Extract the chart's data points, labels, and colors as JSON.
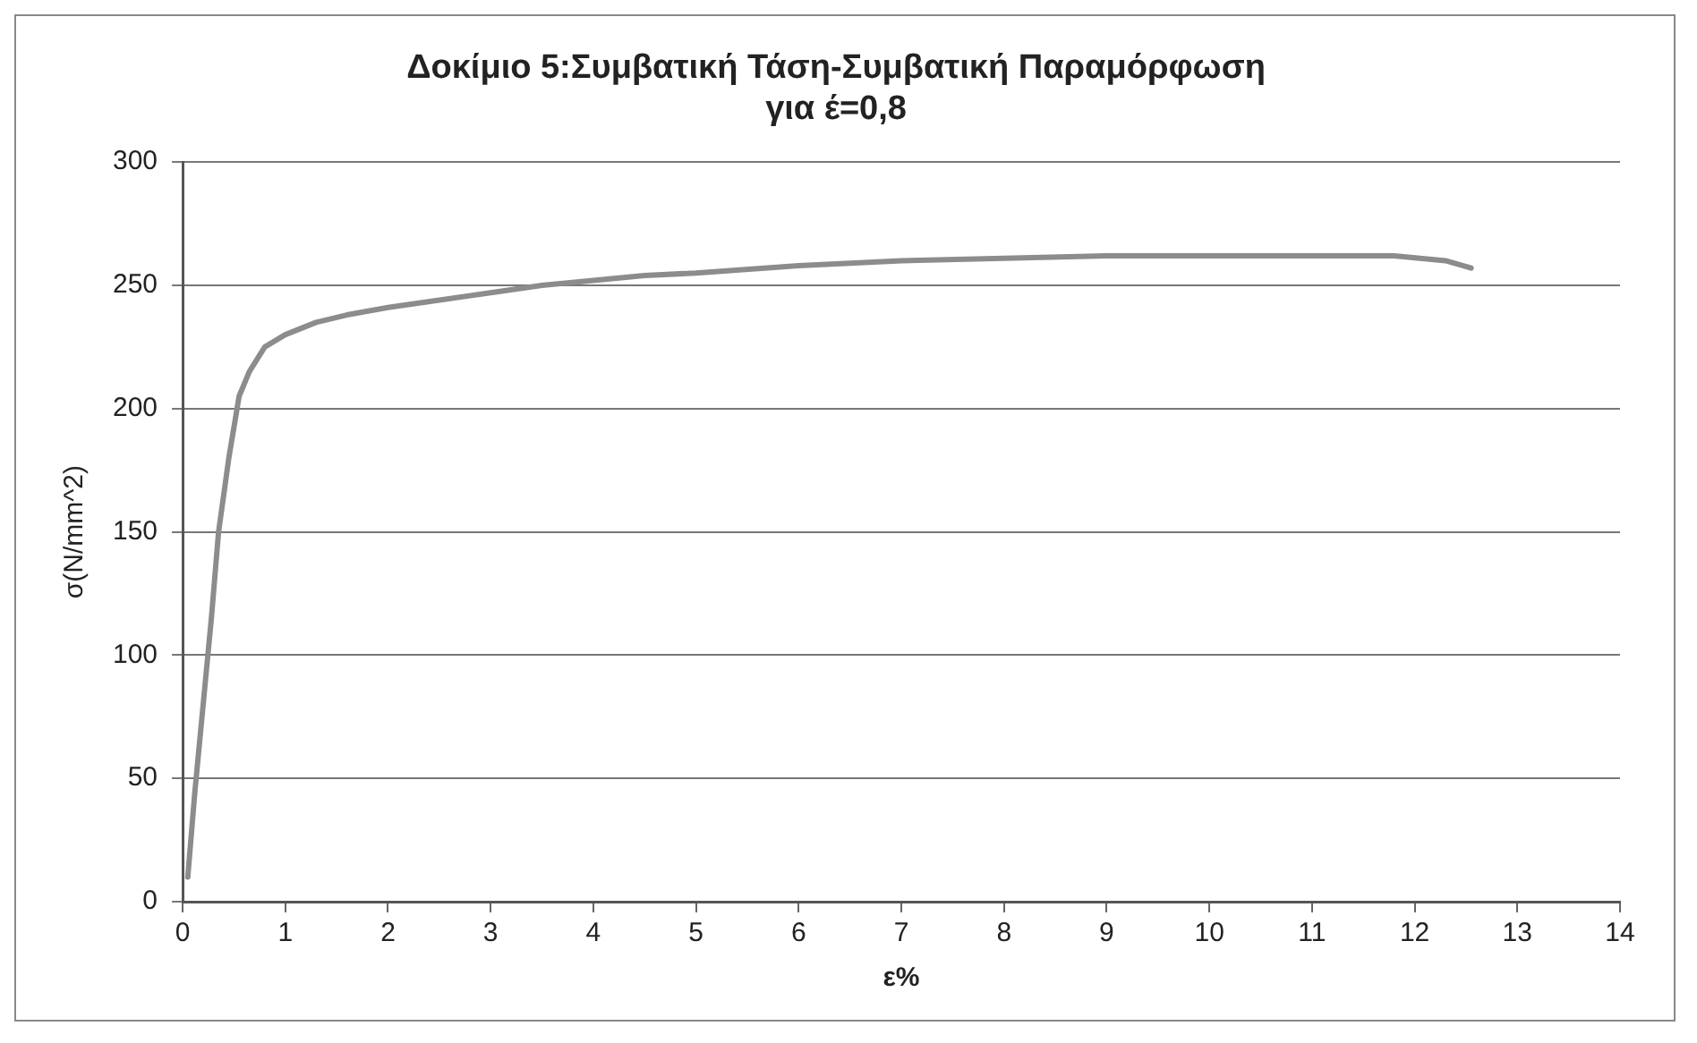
{
  "chart_data": {
    "type": "line",
    "title": [
      "Δοκίμιο 5:Συμβατική Τάση-Συμβατική Παραμόρφωση",
      "για έ=0,8"
    ],
    "xlabel": "ε%",
    "ylabel": "σ(N/mm^2)",
    "x": [
      0.05,
      0.12,
      0.2,
      0.28,
      0.35,
      0.45,
      0.55,
      0.65,
      0.8,
      1,
      1.3,
      1.6,
      2,
      2.5,
      3,
      3.5,
      4,
      4.5,
      5,
      6,
      7,
      8,
      9,
      10,
      11,
      11.8,
      12.3,
      12.55
    ],
    "series": [
      {
        "color": "#8c8c8c",
        "values": [
          10,
          45,
          80,
          115,
          150,
          180,
          205,
          215,
          225,
          230,
          235,
          238,
          241,
          244,
          247,
          250,
          252,
          254,
          255,
          258,
          260,
          261,
          262,
          262,
          262,
          262,
          260,
          257
        ]
      }
    ],
    "xlim": [
      0,
      14
    ],
    "xticks": [
      0,
      1,
      2,
      3,
      4,
      5,
      6,
      7,
      8,
      9,
      10,
      11,
      12,
      13,
      14
    ],
    "ylim": [
      0,
      300
    ],
    "yticks": [
      0,
      50,
      100,
      150,
      200,
      250,
      300
    ],
    "grid": "y",
    "legend": false,
    "marker": "none",
    "line_style": "solid"
  }
}
